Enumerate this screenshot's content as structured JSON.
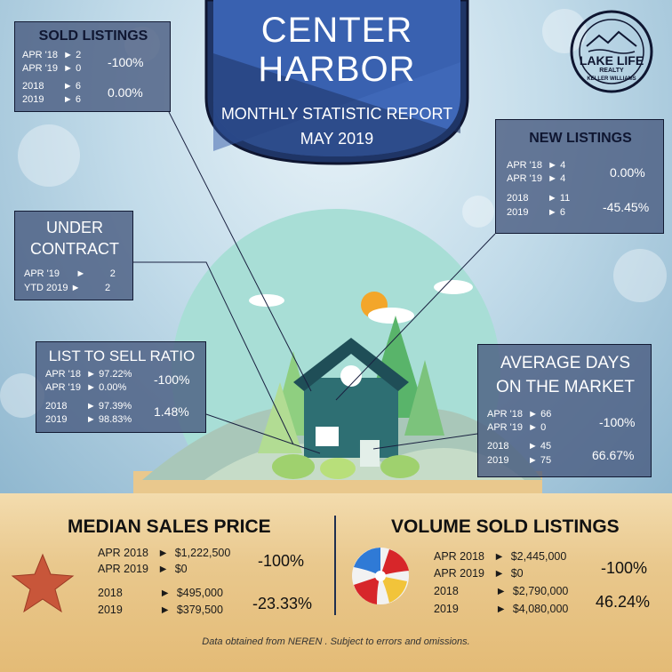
{
  "banner": {
    "city_line1": "CENTER",
    "city_line2": "HARBOR",
    "report_line": "MONTHLY STATISTIC REPORT",
    "date_line": "MAY 2019"
  },
  "logo": {
    "name": "LAKE LIFE",
    "sub": "REALTY",
    "ring": "KELLER WILLIAMS"
  },
  "sold_listings": {
    "title": "SOLD LISTINGS",
    "rows": [
      {
        "label": "APR '18",
        "arrow": "►",
        "value": "2"
      },
      {
        "label": "APR '19",
        "arrow": "►",
        "value": "0"
      },
      {
        "label": "2018",
        "arrow": "►",
        "value": "6"
      },
      {
        "label": "2019",
        "arrow": "►",
        "value": "6"
      }
    ],
    "pct_month": "-100%",
    "pct_year": "0.00%"
  },
  "new_listings": {
    "title": "NEW LISTINGS",
    "rows": [
      {
        "label": "APR '18",
        "arrow": "►",
        "value": "4"
      },
      {
        "label": "APR '19",
        "arrow": "►",
        "value": "4"
      },
      {
        "label": "2018",
        "arrow": "►",
        "value": "11"
      },
      {
        "label": "2019",
        "arrow": "►",
        "value": "6"
      }
    ],
    "pct_month": "0.00%",
    "pct_year": "-45.45%"
  },
  "under_contract": {
    "title_line1": "UNDER",
    "title_line2": "CONTRACT",
    "rows": [
      {
        "label": "APR '19",
        "arrow": "►",
        "value": "2"
      },
      {
        "label": "YTD 2019",
        "arrow": "►",
        "value": "2"
      }
    ]
  },
  "list_to_sell": {
    "title": "LIST TO SELL  RATIO",
    "rows": [
      {
        "label": "APR '18",
        "arrow": "►",
        "value": "97.22%"
      },
      {
        "label": "APR '19",
        "arrow": "►",
        "value": "0.00%"
      },
      {
        "label": "2018",
        "arrow": "►",
        "value": "97.39%"
      },
      {
        "label": "2019",
        "arrow": "►",
        "value": "98.83%"
      }
    ],
    "pct_month": "-100%",
    "pct_year": "1.48%"
  },
  "avg_days": {
    "title_line1": "AVERAGE DAYS",
    "title_line2": "ON THE MARKET",
    "rows": [
      {
        "label": "APR '18",
        "arrow": "►",
        "value": "66"
      },
      {
        "label": "APR '19",
        "arrow": "►",
        "value": "0"
      },
      {
        "label": "2018",
        "arrow": "►",
        "value": "45"
      },
      {
        "label": "2019",
        "arrow": "►",
        "value": "75"
      }
    ],
    "pct_month": "-100%",
    "pct_year": "66.67%"
  },
  "median_price": {
    "title": "MEDIAN SALES PRICE",
    "rows": [
      {
        "label": "APR 2018",
        "arrow": "►",
        "value": "$1,222,500"
      },
      {
        "label": "APR 2019",
        "arrow": "►",
        "value": "$0"
      },
      {
        "label": "2018",
        "arrow": "►",
        "value": "$495,000"
      },
      {
        "label": "2019",
        "arrow": "►",
        "value": "$379,500"
      }
    ],
    "pct_month": "-100%",
    "pct_year": "-23.33%"
  },
  "volume_sold": {
    "title": "VOLUME SOLD LISTINGS",
    "rows": [
      {
        "label": "APR 2018",
        "arrow": "►",
        "value": "$2,445,000"
      },
      {
        "label": "APR 2019",
        "arrow": "►",
        "value": "$0"
      },
      {
        "label": "2018",
        "arrow": "►",
        "value": "$2,790,000"
      },
      {
        "label": "2019",
        "arrow": "►",
        "value": "$4,080,000"
      }
    ],
    "pct_month": "-100%",
    "pct_year": "46.24%"
  },
  "footer": "Data obtained from NEREN . Subject to errors and omissions.",
  "colors": {
    "banner_dark": "#1f3566",
    "banner_light": "#3f68b8",
    "panel": "#47597e",
    "sand": "#e9c88d",
    "house": "#2e6f73",
    "sun": "#f3a62a"
  }
}
